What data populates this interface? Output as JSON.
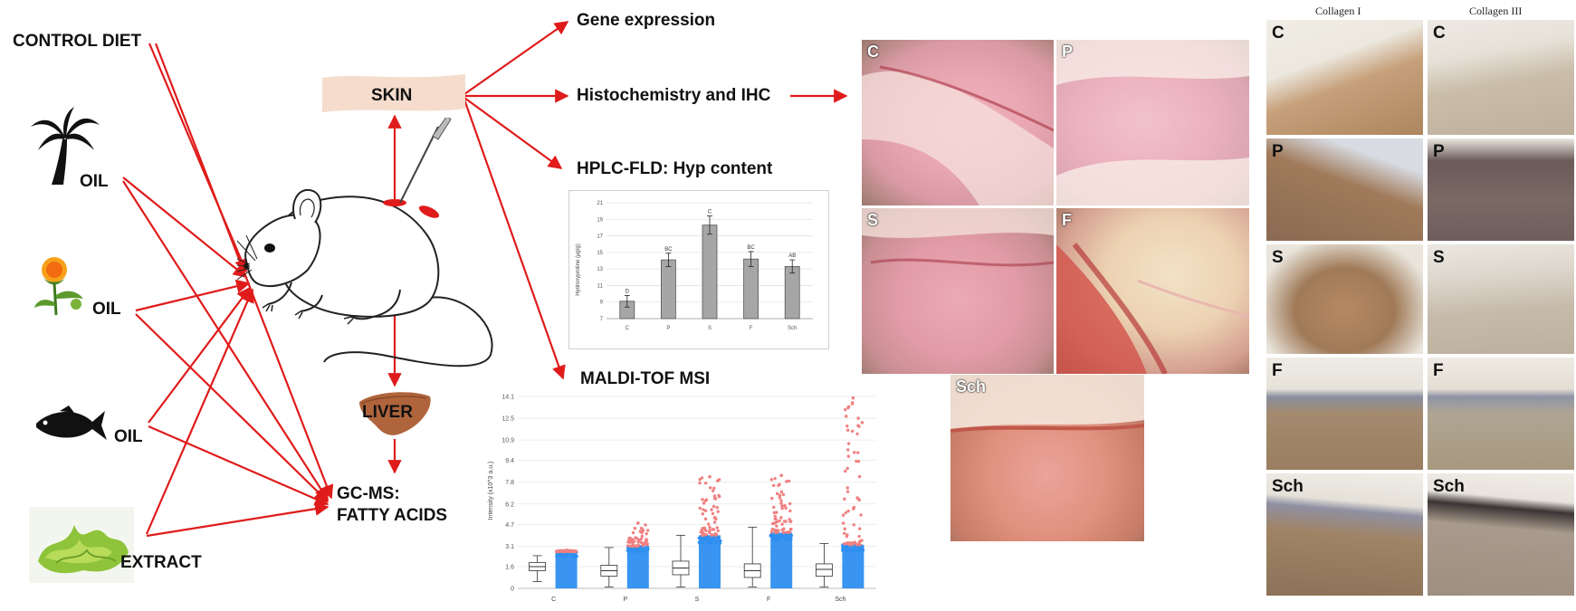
{
  "diets": [
    {
      "label": "CONTROL DIET"
    },
    {
      "label": "OIL",
      "icon": "palm-tree-icon"
    },
    {
      "label": "OIL",
      "icon": "safflower-icon"
    },
    {
      "label": "OIL",
      "icon": "fish-icon"
    },
    {
      "label": "EXTRACT",
      "icon": "seaweed-icon"
    }
  ],
  "nodes": {
    "skin": "SKIN",
    "liver": "LIVER",
    "gcms_line1": "GC-MS:",
    "gcms_line2": "FATTY ACIDS"
  },
  "analyses": {
    "gene_expression": "Gene expression",
    "histo": "Histochemistry and IHC",
    "hplc": "HPLC-FLD: Hyp content",
    "maldi": "MALDI-TOF MSI"
  },
  "histology_panels": [
    "C",
    "P",
    "S",
    "F",
    "Sch"
  ],
  "ihc": {
    "col1_title": "Collagen I",
    "col2_title": "Collagen III",
    "rows": [
      "C",
      "P",
      "S",
      "F",
      "Sch"
    ]
  },
  "colors": {
    "arrow": "#e01b1b",
    "bar": "#a6a6a6",
    "scatter_blue": "#2e8ff0",
    "scatter_red": "#f08080",
    "skin_box": "#f5dccc",
    "liver": "#b0643c"
  },
  "chart_data": [
    {
      "type": "bar",
      "categories": [
        "C",
        "P",
        "S",
        "F",
        "Sch"
      ],
      "values": [
        9.1,
        14.1,
        18.3,
        14.2,
        13.3
      ],
      "errors": [
        0.7,
        0.8,
        1.1,
        0.9,
        0.8
      ],
      "significance": [
        "D",
        "BC",
        "C",
        "BC",
        "AB"
      ],
      "ylabel": "Hydroxyproline (µg/g)",
      "yticks": [
        "7",
        "9",
        "11",
        "13",
        "15",
        "17",
        "19",
        "21"
      ],
      "ylim": [
        7,
        21
      ],
      "grid": true
    },
    {
      "type": "scatter",
      "categories": [
        "C",
        "P",
        "S",
        "F",
        "Sch"
      ],
      "ylabel": "Intensity (x10^3 a.u.)",
      "yticks": [
        "0",
        "1.6",
        "3.1",
        "4.7",
        "6.2",
        "7.8",
        "9.4",
        "10.9",
        "12.5",
        "14.1"
      ],
      "ylim": [
        0,
        14.1
      ],
      "boxplots": [
        {
          "min": 0.5,
          "q1": 1.3,
          "median": 1.6,
          "q3": 1.9,
          "max": 2.4
        },
        {
          "min": 0.1,
          "q1": 0.9,
          "median": 1.3,
          "q3": 1.7,
          "max": 3.0
        },
        {
          "min": 0.1,
          "q1": 1.0,
          "median": 1.5,
          "q3": 2.0,
          "max": 3.9
        },
        {
          "min": 0.1,
          "q1": 0.8,
          "median": 1.3,
          "q3": 1.8,
          "max": 4.5
        },
        {
          "min": 0.1,
          "q1": 0.9,
          "median": 1.4,
          "q3": 1.8,
          "max": 3.3
        }
      ],
      "scatter_max": [
        2.7,
        3.1,
        3.9,
        4.1,
        3.2
      ],
      "outlier_max": [
        2.8,
        4.8,
        8.2,
        8.3,
        14.0
      ]
    }
  ]
}
